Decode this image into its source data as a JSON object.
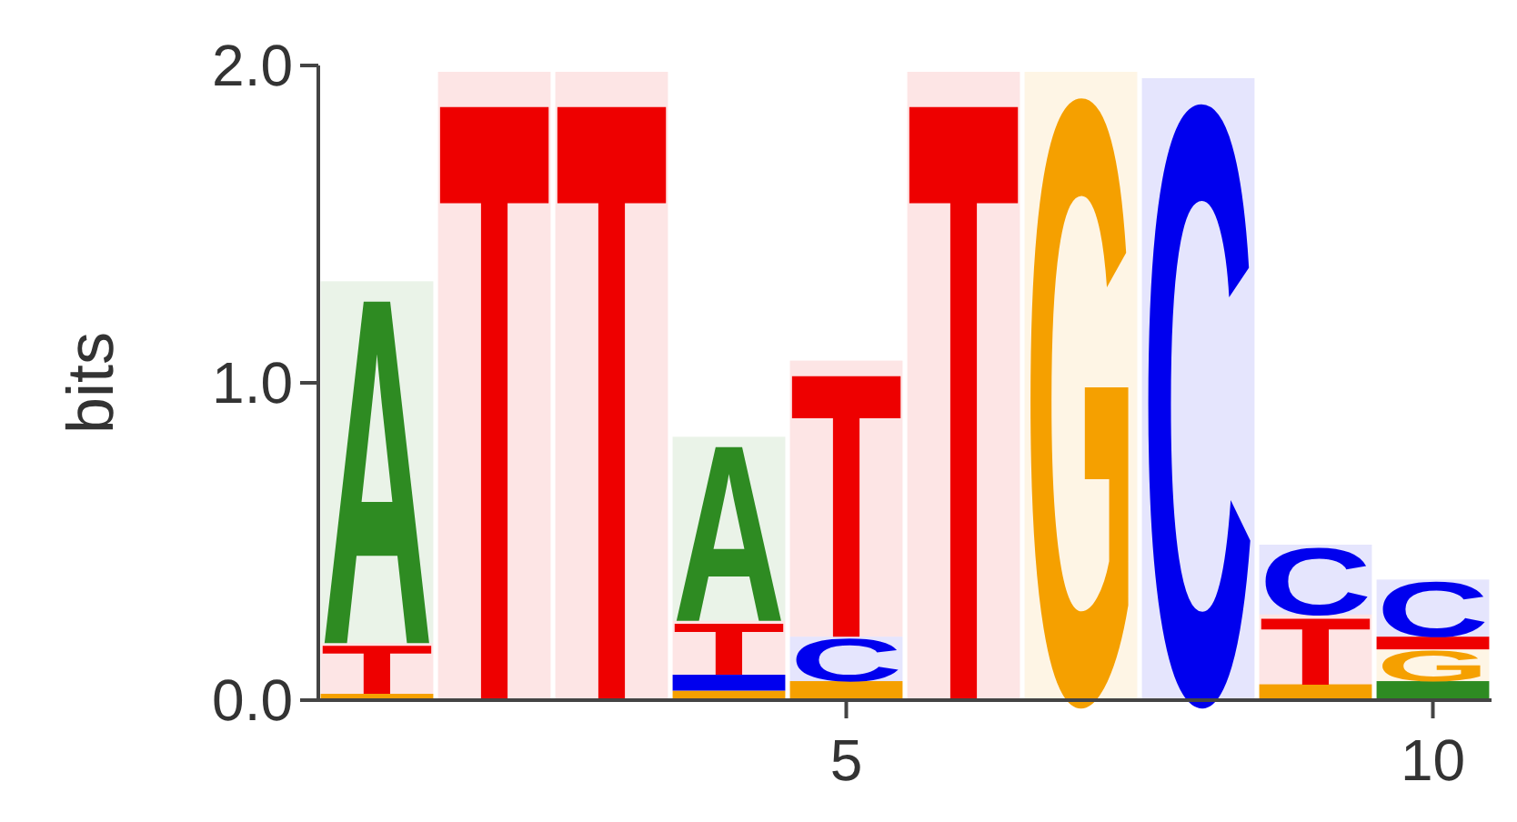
{
  "chart_data": {
    "type": "bar",
    "stacked": true,
    "ylabel": "bits",
    "x": [
      1,
      2,
      3,
      4,
      5,
      6,
      7,
      8,
      9,
      10
    ],
    "xlim": [
      0.5,
      10.5
    ],
    "xticks": [
      5,
      10
    ],
    "ylim": [
      0,
      2
    ],
    "yticks": [
      {
        "value": 0,
        "label": "0.0"
      },
      {
        "value": 1,
        "label": "1.0"
      },
      {
        "value": 2,
        "label": "2.0"
      }
    ],
    "series": [
      {
        "values": [
          0.02,
          1.98,
          1.98,
          0.03,
          0.06,
          1.98,
          1.98,
          1.96,
          0.05,
          0.06
        ],
        "colors": [
          "#f5a000",
          "#ee0000",
          "#ee0000",
          "#f5a000",
          "#f5a000",
          "#ee0000",
          "#f5a000",
          "#0000ee",
          "#f5a000",
          "#2e8b22"
        ],
        "value_labels": [
          null,
          "T",
          "T",
          null,
          null,
          "T",
          "G",
          "C",
          null,
          null
        ]
      },
      {
        "values": [
          0.16,
          null,
          null,
          0.05,
          0.14,
          null,
          null,
          null,
          0.22,
          0.1
        ],
        "colors": [
          "#ee0000",
          null,
          null,
          "#0000ee",
          "#0000ee",
          null,
          null,
          null,
          "#ee0000",
          "#f5a000"
        ],
        "value_labels": [
          "T",
          null,
          null,
          null,
          "C",
          null,
          null,
          null,
          "T",
          "G"
        ]
      },
      {
        "values": [
          1.14,
          null,
          null,
          0.17,
          0.87,
          null,
          null,
          null,
          0.22,
          0.04
        ],
        "colors": [
          "#2e8b22",
          null,
          null,
          "#ee0000",
          "#ee0000",
          null,
          null,
          null,
          "#0000ee",
          "#ee0000"
        ],
        "value_labels": [
          "A",
          null,
          null,
          "T",
          "T",
          null,
          null,
          null,
          "C",
          null
        ]
      },
      {
        "values": [
          null,
          null,
          null,
          0.58,
          null,
          null,
          null,
          null,
          null,
          0.18
        ],
        "colors": [
          null,
          null,
          null,
          "#2e8b22",
          null,
          null,
          null,
          null,
          null,
          "#0000ee"
        ],
        "value_labels": [
          null,
          null,
          null,
          "A",
          null,
          null,
          null,
          null,
          null,
          "C"
        ]
      }
    ]
  }
}
